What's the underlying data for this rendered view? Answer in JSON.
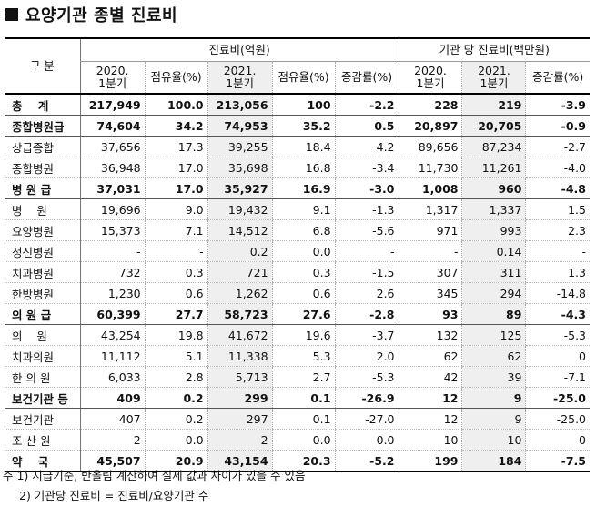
{
  "title": "요양기관 종별 진료비",
  "header": {
    "category": "구   분",
    "group1": "진료비(억원)",
    "group2": "기관 당 진료비(백만원)",
    "cols": [
      "2020.\n1분기",
      "점유율(%)",
      "2021.\n1분기",
      "점유율(%)",
      "증감률(%)",
      "2020.\n1분기",
      "2021.\n1분기",
      "증감률(%)"
    ]
  },
  "rows": [
    {
      "label": "총    계",
      "bold": true,
      "v": [
        "217,949",
        "100.0",
        "213,056",
        "100",
        "-2.2",
        "228",
        "219",
        "-3.9"
      ]
    },
    {
      "label": "종합병원급",
      "bold": true,
      "v": [
        "74,604",
        "34.2",
        "74,953",
        "35.2",
        "0.5",
        "20,897",
        "20,705",
        "-0.9"
      ]
    },
    {
      "label": "상급종합",
      "bold": false,
      "v": [
        "37,656",
        "17.3",
        "39,255",
        "18.4",
        "4.2",
        "89,656",
        "87,234",
        "-2.7"
      ]
    },
    {
      "label": "종합병원",
      "bold": false,
      "v": [
        "36,948",
        "17.0",
        "35,698",
        "16.8",
        "-3.4",
        "11,730",
        "11,261",
        "-4.0"
      ]
    },
    {
      "label": "병 원 급",
      "bold": true,
      "v": [
        "37,031",
        "17.0",
        "35,927",
        "16.9",
        "-3.0",
        "1,008",
        "960",
        "-4.8"
      ]
    },
    {
      "label": "병    원",
      "bold": false,
      "v": [
        "19,696",
        "9.0",
        "19,432",
        "9.1",
        "-1.3",
        "1,317",
        "1,337",
        "1.5"
      ]
    },
    {
      "label": "요양병원",
      "bold": false,
      "v": [
        "15,373",
        "7.1",
        "14,512",
        "6.8",
        "-5.6",
        "971",
        "993",
        "2.3"
      ]
    },
    {
      "label": "정신병원",
      "bold": false,
      "v": [
        "-",
        "-",
        "0.2",
        "0.0",
        "-",
        "-",
        "0.14",
        "-"
      ]
    },
    {
      "label": "치과병원",
      "bold": false,
      "v": [
        "732",
        "0.3",
        "721",
        "0.3",
        "-1.5",
        "307",
        "311",
        "1.3"
      ]
    },
    {
      "label": "한방병원",
      "bold": false,
      "v": [
        "1,230",
        "0.6",
        "1,262",
        "0.6",
        "2.6",
        "345",
        "294",
        "-14.8"
      ]
    },
    {
      "label": "의 원 급",
      "bold": true,
      "v": [
        "60,399",
        "27.7",
        "58,723",
        "27.6",
        "-2.8",
        "93",
        "89",
        "-4.3"
      ]
    },
    {
      "label": "의    원",
      "bold": false,
      "v": [
        "43,254",
        "19.8",
        "41,672",
        "19.6",
        "-3.7",
        "132",
        "125",
        "-5.3"
      ]
    },
    {
      "label": "치과의원",
      "bold": false,
      "v": [
        "11,112",
        "5.1",
        "11,338",
        "5.3",
        "2.0",
        "62",
        "62",
        "0"
      ]
    },
    {
      "label": "한 의 원",
      "bold": false,
      "v": [
        "6,033",
        "2.8",
        "5,713",
        "2.7",
        "-5.3",
        "42",
        "39",
        "-7.1"
      ]
    },
    {
      "label": "보건기관 등",
      "bold": true,
      "v": [
        "409",
        "0.2",
        "299",
        "0.1",
        "-26.9",
        "12",
        "9",
        "-25.0"
      ]
    },
    {
      "label": "보건기관",
      "bold": false,
      "v": [
        "407",
        "0.2",
        "297",
        "0.1",
        "-27.0",
        "12",
        "9",
        "-25.0"
      ]
    },
    {
      "label": "조 산 원",
      "bold": false,
      "v": [
        "2",
        "0.0",
        "2",
        "0.0",
        "0.0",
        "10",
        "10",
        "0"
      ]
    },
    {
      "label": "약    국",
      "bold": true,
      "v": [
        "45,507",
        "20.9",
        "43,154",
        "20.3",
        "-5.2",
        "199",
        "184",
        "-7.5"
      ]
    }
  ],
  "notes": [
    "주 1) 지급기준, 반올림 계산하여 실제 값과 차이가 있을 수 있음",
    "2) 기관당 진료비 = 진료비/요양기관 수"
  ]
}
